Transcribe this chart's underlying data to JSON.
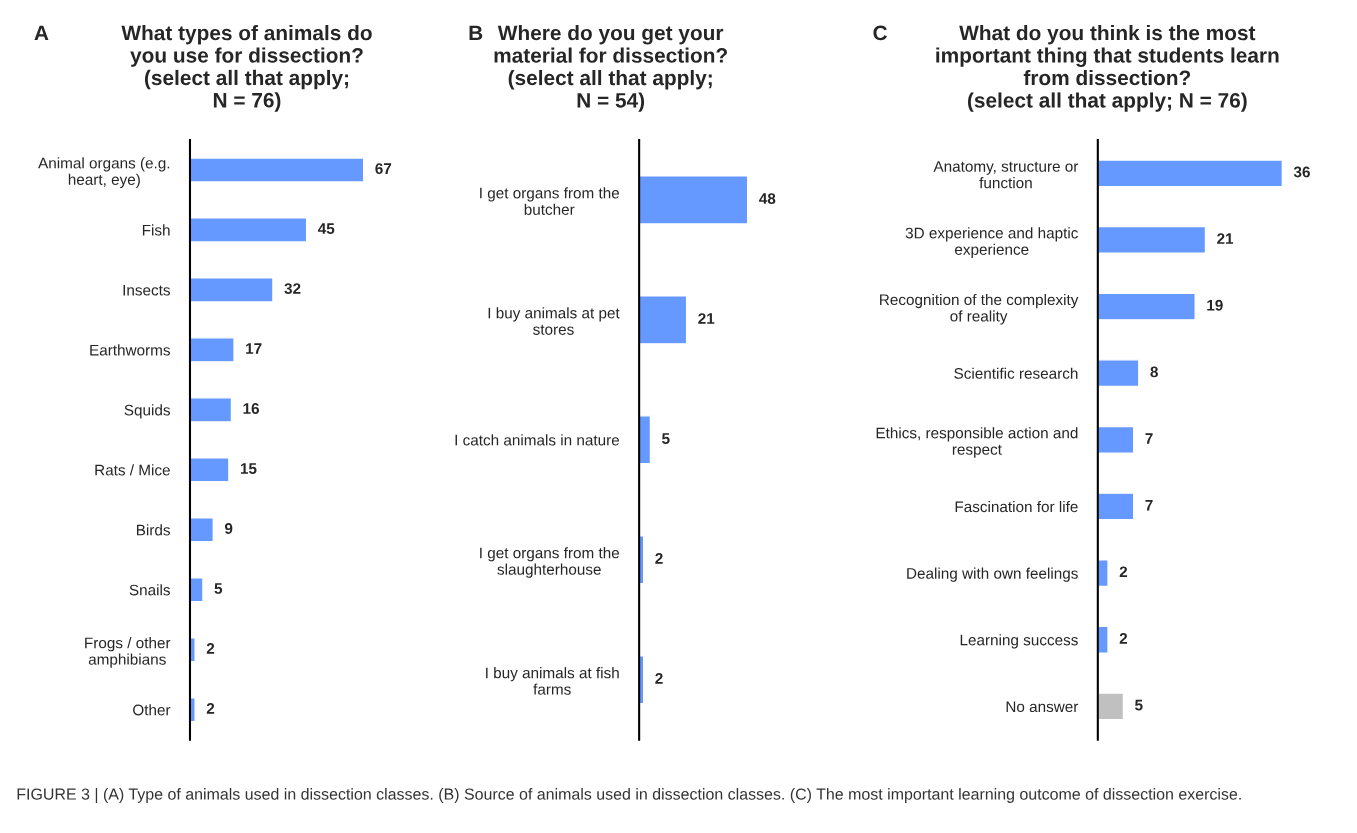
{
  "chart_data": [
    {
      "type": "bar",
      "orientation": "horizontal",
      "title": "What types of animals do\nyou use for dissection?\n(select all that apply;\nN = 76)",
      "annotations": [
        "A",
        "FIGURE 3 | (A) Type of animals used in dissection classes. (B) Source of animals used in dissection classes. (C) The most important learning outcome of dissection exercise."
      ],
      "categories": [
        "Animal organs (e.g.\nheart, eye)",
        "Fish",
        "Insects",
        "Earthworms",
        "Squids",
        "Rats / Mice",
        "Birds",
        "Snails",
        "Frogs / other\namphibians",
        "Other"
      ],
      "values": [
        67,
        45,
        32,
        17,
        16,
        15,
        9,
        5,
        2,
        2
      ],
      "color": "#6699ff",
      "data_labels": true,
      "grid": false,
      "legend": false
    },
    {
      "type": "bar",
      "orientation": "horizontal",
      "title": "Where do you get your\nmaterial for dissection?\n(select all that apply;\nN = 54)",
      "annotations": [
        "B"
      ],
      "categories": [
        "I get organs from the\nbutcher",
        "I buy animals at pet\nstores",
        "I catch animals in nature",
        "I get organs from the\nslaughterhouse",
        "I buy animals at fish\nfarms"
      ],
      "values": [
        48,
        21,
        5,
        2,
        2
      ],
      "color": "#6699ff",
      "data_labels": true,
      "grid": false,
      "legend": false
    },
    {
      "type": "bar",
      "orientation": "horizontal",
      "title": "What do you think is the most\nimportant thing that students learn\nfrom dissection?\n(select all that apply; N = 76)",
      "annotations": [
        "C"
      ],
      "categories": [
        "Anatomy, structure or\nfunction",
        "3D experience and haptic\nexperience",
        "Recognition of the complexity\nof reality",
        "Scientific research",
        "Ethics, responsible action and\nrespect",
        "Fascination for life",
        "Dealing with own feelings",
        "Learning success",
        "No answer"
      ],
      "values": [
        36,
        21,
        19,
        8,
        7,
        7,
        2,
        2,
        5
      ],
      "colors": [
        "#6699ff",
        "#6699ff",
        "#6699ff",
        "#6699ff",
        "#6699ff",
        "#6699ff",
        "#6699ff",
        "#6699ff",
        "#c0c0c0"
      ],
      "data_labels": true,
      "grid": false,
      "legend": false
    }
  ]
}
